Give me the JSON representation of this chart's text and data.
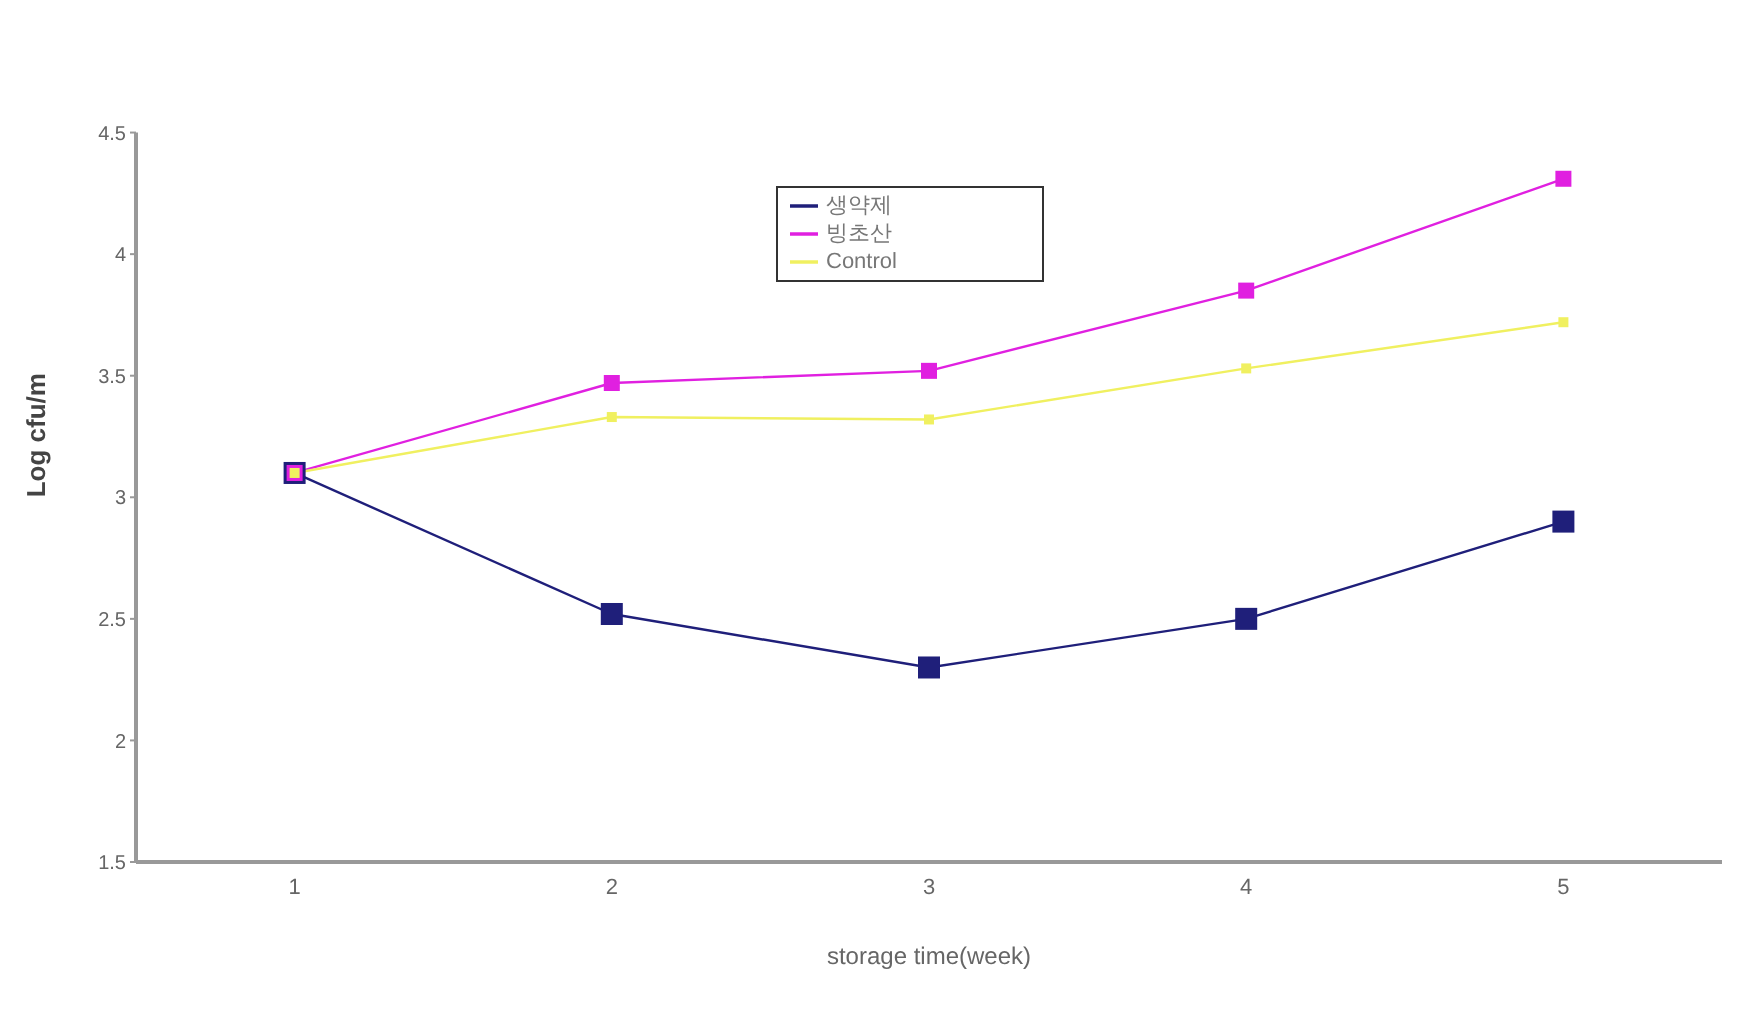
{
  "chart_data": {
    "type": "line",
    "xlabel": "storage time(week)",
    "ylabel": "Log cfu/m",
    "x": [
      1,
      2,
      3,
      4,
      5
    ],
    "xlim": [
      0.5,
      5.5
    ],
    "xticks": [
      1,
      2,
      3,
      4,
      5
    ],
    "ylim": [
      1.5,
      4.5
    ],
    "yticks": [
      1.5,
      2,
      2.5,
      3,
      3.5,
      4,
      4.5
    ],
    "grid": false,
    "legend": "top",
    "marker": "square",
    "line_style": "solid",
    "series": [
      {
        "name": "생약제",
        "color": "#1f1f7a",
        "values": [
          3.1,
          2.52,
          2.3,
          2.5,
          2.9
        ]
      },
      {
        "name": "빙초산",
        "color": "#e020e0",
        "values": [
          3.1,
          3.47,
          3.52,
          3.85,
          4.31
        ]
      },
      {
        "name": "Control",
        "color": "#f0f060",
        "values": [
          3.1,
          3.33,
          3.32,
          3.53,
          3.72
        ]
      }
    ]
  }
}
